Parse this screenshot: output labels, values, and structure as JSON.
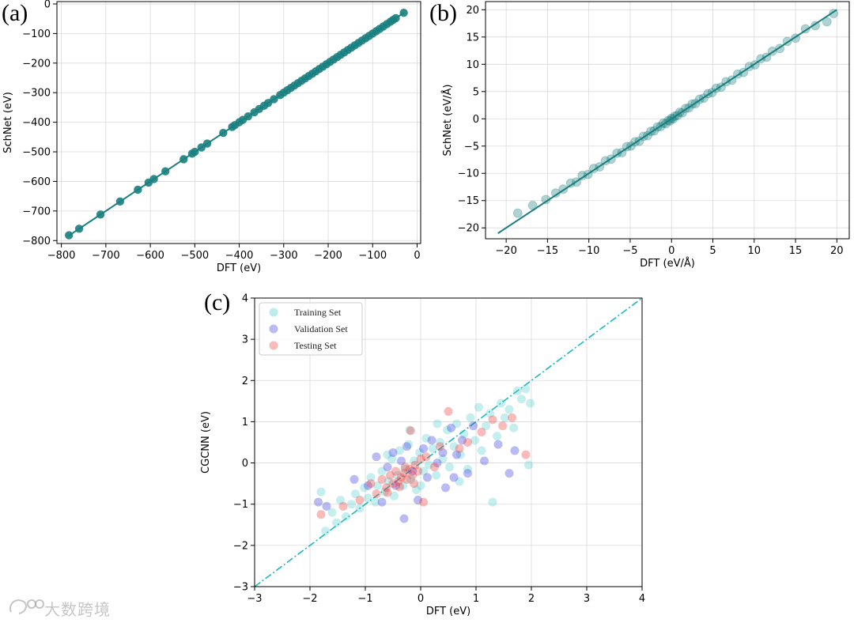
{
  "colors": {
    "teal": "#1a7f7f",
    "training": "#40c8c8",
    "validation": "#3a3adf",
    "testing": "#ef3a3a",
    "diag_c": "#1bb8c0"
  },
  "watermark": {
    "text": "大数跨境"
  },
  "chart_data": [
    {
      "id": "a",
      "type": "scatter",
      "panel_label": "(a)",
      "xlabel": "DFT (eV)",
      "ylabel": "SchNet (eV)",
      "xlim": [
        -810,
        8
      ],
      "ylim": [
        -810,
        8
      ],
      "grid": true,
      "xticks": [
        -800,
        -700,
        -600,
        -500,
        -400,
        -300,
        -200,
        -100,
        0
      ],
      "xtick_labels": [
        "−800",
        "−700",
        "−600",
        "−500",
        "−400",
        "−300",
        "−200",
        "−100",
        "0"
      ],
      "yticks": [
        -800,
        -700,
        -600,
        -500,
        -400,
        -300,
        -200,
        -100,
        0
      ],
      "ytick_labels": [
        "−800",
        "−700",
        "−600",
        "−500",
        "−400",
        "−300",
        "−200",
        "−100",
        "0"
      ],
      "diagonal": [
        [
          -783,
          -783
        ],
        [
          -30,
          -30
        ]
      ],
      "points": [
        [
          -783,
          -782
        ],
        [
          -760,
          -760
        ],
        [
          -712,
          -712
        ],
        [
          -668,
          -668
        ],
        [
          -628,
          -628
        ],
        [
          -604,
          -604
        ],
        [
          -592,
          -592
        ],
        [
          -566,
          -566
        ],
        [
          -525,
          -525
        ],
        [
          -506,
          -506
        ],
        [
          -500,
          -500
        ],
        [
          -485,
          -485
        ],
        [
          -472,
          -472
        ],
        [
          -436,
          -436
        ],
        [
          -416,
          -416
        ],
        [
          -410,
          -410
        ],
        [
          -400,
          -400
        ],
        [
          -392,
          -392
        ],
        [
          -380,
          -380
        ],
        [
          -366,
          -366
        ],
        [
          -355,
          -355
        ],
        [
          -344,
          -344
        ],
        [
          -335,
          -335
        ],
        [
          -322,
          -322
        ],
        [
          -308,
          -308
        ],
        [
          -300,
          -300
        ],
        [
          -292,
          -292
        ],
        [
          -284,
          -284
        ],
        [
          -276,
          -276
        ],
        [
          -268,
          -268
        ],
        [
          -260,
          -260
        ],
        [
          -252,
          -252
        ],
        [
          -244,
          -244
        ],
        [
          -236,
          -236
        ],
        [
          -228,
          -228
        ],
        [
          -220,
          -220
        ],
        [
          -212,
          -212
        ],
        [
          -204,
          -204
        ],
        [
          -196,
          -196
        ],
        [
          -188,
          -188
        ],
        [
          -180,
          -180
        ],
        [
          -172,
          -172
        ],
        [
          -164,
          -164
        ],
        [
          -156,
          -156
        ],
        [
          -148,
          -148
        ],
        [
          -140,
          -140
        ],
        [
          -132,
          -132
        ],
        [
          -124,
          -124
        ],
        [
          -116,
          -116
        ],
        [
          -108,
          -108
        ],
        [
          -100,
          -100
        ],
        [
          -92,
          -92
        ],
        [
          -84,
          -84
        ],
        [
          -76,
          -76
        ],
        [
          -68,
          -68
        ],
        [
          -60,
          -60
        ],
        [
          -54,
          -54
        ],
        [
          -48,
          -48
        ],
        [
          -30,
          -30
        ]
      ]
    },
    {
      "id": "b",
      "type": "scatter",
      "panel_label": "(b)",
      "xlabel": "DFT (eV/Å)",
      "ylabel": "SchNet (eV/Å)",
      "xlim": [
        -22.5,
        21.5
      ],
      "ylim": [
        -22,
        21.5
      ],
      "grid": true,
      "xticks": [
        -20,
        -15,
        -10,
        -5,
        0,
        5,
        10,
        15,
        20
      ],
      "xtick_labels": [
        "−20",
        "−15",
        "−10",
        "−5",
        "0",
        "5",
        "10",
        "15",
        "20"
      ],
      "yticks": [
        -20,
        -15,
        -10,
        -5,
        0,
        5,
        10,
        15,
        20
      ],
      "ytick_labels": [
        "−20",
        "−15",
        "−10",
        "−5",
        "0",
        "5",
        "10",
        "15",
        "20"
      ],
      "diagonal": [
        [
          -21,
          -21
        ],
        [
          20,
          20
        ]
      ],
      "points": [
        [
          -18.6,
          -17.3
        ],
        [
          -16.8,
          -15.9
        ],
        [
          -15.2,
          -14.8
        ],
        [
          -14.0,
          -13.6
        ],
        [
          -13.1,
          -12.9
        ],
        [
          -12.2,
          -11.8
        ],
        [
          -11.5,
          -11.6
        ],
        [
          -10.8,
          -10.4
        ],
        [
          -10.1,
          -10.2
        ],
        [
          -9.4,
          -9.1
        ],
        [
          -8.7,
          -8.8
        ],
        [
          -8.0,
          -7.7
        ],
        [
          -7.3,
          -7.4
        ],
        [
          -6.6,
          -6.3
        ],
        [
          -6.0,
          -6.2
        ],
        [
          -5.4,
          -5.1
        ],
        [
          -4.9,
          -5.0
        ],
        [
          -4.4,
          -4.2
        ],
        [
          -3.9,
          -4.1
        ],
        [
          -3.4,
          -3.2
        ],
        [
          -2.9,
          -3.1
        ],
        [
          -2.5,
          -2.3
        ],
        [
          -2.1,
          -2.2
        ],
        [
          -1.7,
          -1.5
        ],
        [
          -1.3,
          -1.4
        ],
        [
          -1.0,
          -0.8
        ],
        [
          -0.7,
          -0.9
        ],
        [
          -0.4,
          -0.3
        ],
        [
          -0.2,
          -0.4
        ],
        [
          0.0,
          0.1
        ],
        [
          0.2,
          0.0
        ],
        [
          0.4,
          0.5
        ],
        [
          0.7,
          0.6
        ],
        [
          1.0,
          1.2
        ],
        [
          1.3,
          1.1
        ],
        [
          1.7,
          1.9
        ],
        [
          2.1,
          2.0
        ],
        [
          2.5,
          2.7
        ],
        [
          2.9,
          2.8
        ],
        [
          3.4,
          3.6
        ],
        [
          3.9,
          3.8
        ],
        [
          4.4,
          4.6
        ],
        [
          4.9,
          4.8
        ],
        [
          5.4,
          5.6
        ],
        [
          6.0,
          5.8
        ],
        [
          6.6,
          6.8
        ],
        [
          7.3,
          7.1
        ],
        [
          8.0,
          8.2
        ],
        [
          8.7,
          8.5
        ],
        [
          9.4,
          9.6
        ],
        [
          10.1,
          9.9
        ],
        [
          10.8,
          11.0
        ],
        [
          11.5,
          11.3
        ],
        [
          12.2,
          12.4
        ],
        [
          13.1,
          12.9
        ],
        [
          14.0,
          14.2
        ],
        [
          15.0,
          14.8
        ],
        [
          16.2,
          16.5
        ],
        [
          17.4,
          17.1
        ],
        [
          18.8,
          17.8
        ],
        [
          19.6,
          19.3
        ]
      ]
    },
    {
      "id": "c",
      "type": "scatter",
      "panel_label": "(c)",
      "xlabel": "DFT (eV)",
      "ylabel": "CGCNN (eV)",
      "xlim": [
        -3,
        4
      ],
      "ylim": [
        -3,
        4
      ],
      "grid": true,
      "xticks": [
        -3,
        -2,
        -1,
        0,
        1,
        2,
        3,
        4
      ],
      "xtick_labels": [
        "−3",
        "−2",
        "−1",
        "0",
        "1",
        "2",
        "3",
        "4"
      ],
      "yticks": [
        -3,
        -2,
        -1,
        0,
        1,
        2,
        3,
        4
      ],
      "ytick_labels": [
        "−3",
        "−2",
        "−1",
        "0",
        "1",
        "2",
        "3",
        "4"
      ],
      "diagonal": [
        [
          -3,
          -3
        ],
        [
          4,
          4
        ]
      ],
      "legend": {
        "position": "top-left",
        "entries": [
          "Training Set",
          "Validation Set",
          "Testing Set"
        ]
      },
      "series": [
        {
          "name": "Training Set",
          "points": [
            [
              -1.8,
              -0.7
            ],
            [
              -1.72,
              -1.65
            ],
            [
              -1.6,
              -1.2
            ],
            [
              -1.52,
              -1.45
            ],
            [
              -1.45,
              -0.9
            ],
            [
              -1.35,
              -1.3
            ],
            [
              -1.25,
              -1.0
            ],
            [
              -1.18,
              -0.75
            ],
            [
              -1.1,
              -1.1
            ],
            [
              -1.02,
              -0.6
            ],
            [
              -0.95,
              -0.85
            ],
            [
              -0.9,
              -0.35
            ],
            [
              -0.82,
              -0.95
            ],
            [
              -0.78,
              -0.55
            ],
            [
              -0.7,
              -0.2
            ],
            [
              -0.65,
              -0.7
            ],
            [
              -0.58,
              -0.45
            ],
            [
              -0.52,
              0.1
            ],
            [
              -0.48,
              -0.8
            ],
            [
              -0.42,
              -0.3
            ],
            [
              -0.38,
              0.3
            ],
            [
              -0.32,
              -0.55
            ],
            [
              -0.28,
              -0.15
            ],
            [
              -0.22,
              0.45
            ],
            [
              -0.18,
              -0.4
            ],
            [
              -0.12,
              0.05
            ],
            [
              -0.08,
              -0.65
            ],
            [
              -0.02,
              0.25
            ],
            [
              0.05,
              -0.2
            ],
            [
              0.1,
              0.6
            ],
            [
              0.15,
              -0.05
            ],
            [
              0.22,
              0.35
            ],
            [
              0.28,
              -0.3
            ],
            [
              0.35,
              0.5
            ],
            [
              0.4,
              0.1
            ],
            [
              0.48,
              0.8
            ],
            [
              0.52,
              -0.1
            ],
            [
              0.6,
              0.4
            ],
            [
              0.65,
              0.95
            ],
            [
              0.72,
              0.2
            ],
            [
              0.78,
              0.7
            ],
            [
              0.85,
              -0.15
            ],
            [
              0.9,
              1.1
            ],
            [
              0.98,
              0.55
            ],
            [
              1.05,
              1.35
            ],
            [
              1.1,
              0.3
            ],
            [
              1.18,
              0.9
            ],
            [
              1.25,
              1.2
            ],
            [
              1.3,
              -0.95
            ],
            [
              1.38,
              0.65
            ],
            [
              1.45,
              1.45
            ],
            [
              1.52,
              1.1
            ],
            [
              1.6,
              1.3
            ],
            [
              1.68,
              0.85
            ],
            [
              1.75,
              1.75
            ],
            [
              1.82,
              1.55
            ],
            [
              1.9,
              1.8
            ],
            [
              1.95,
              -0.05
            ],
            [
              1.98,
              1.45
            ],
            [
              -0.2,
              0.8
            ],
            [
              0.0,
              -0.55
            ],
            [
              0.3,
              0.95
            ],
            [
              -0.6,
              0.2
            ],
            [
              0.7,
              -0.45
            ]
          ]
        },
        {
          "name": "Validation Set",
          "points": [
            [
              -1.85,
              -0.95
            ],
            [
              -1.7,
              -1.05
            ],
            [
              -1.2,
              -0.4
            ],
            [
              -0.95,
              -0.55
            ],
            [
              -0.8,
              0.15
            ],
            [
              -0.7,
              -0.95
            ],
            [
              -0.6,
              -0.1
            ],
            [
              -0.5,
              0.25
            ],
            [
              -0.45,
              -0.55
            ],
            [
              -0.35,
              0.05
            ],
            [
              -0.3,
              -1.35
            ],
            [
              -0.25,
              0.4
            ],
            [
              -0.15,
              -0.2
            ],
            [
              -0.05,
              -0.9
            ],
            [
              0.05,
              0.35
            ],
            [
              0.12,
              -0.35
            ],
            [
              0.2,
              0.55
            ],
            [
              0.3,
              0.0
            ],
            [
              0.4,
              0.25
            ],
            [
              0.45,
              -0.6
            ],
            [
              0.55,
              0.85
            ],
            [
              0.6,
              -0.35
            ],
            [
              0.65,
              0.2
            ],
            [
              0.75,
              0.55
            ],
            [
              0.85,
              -0.25
            ],
            [
              0.95,
              0.9
            ],
            [
              1.15,
              0.05
            ],
            [
              1.4,
              0.45
            ],
            [
              1.6,
              -0.25
            ],
            [
              1.7,
              0.3
            ]
          ]
        },
        {
          "name": "Testing Set",
          "points": [
            [
              -1.8,
              -1.25
            ],
            [
              -1.4,
              -1.05
            ],
            [
              -1.1,
              -0.9
            ],
            [
              -0.9,
              -0.5
            ],
            [
              -0.8,
              -0.75
            ],
            [
              -0.7,
              -0.4
            ],
            [
              -0.62,
              -0.6
            ],
            [
              -0.55,
              -0.3
            ],
            [
              -0.5,
              -0.5
            ],
            [
              -0.45,
              -0.2
            ],
            [
              -0.4,
              -0.45
            ],
            [
              -0.35,
              -0.35
            ],
            [
              -0.3,
              -0.25
            ],
            [
              -0.25,
              -0.4
            ],
            [
              -0.2,
              -0.15
            ],
            [
              -0.15,
              -0.3
            ],
            [
              -0.1,
              -0.05
            ],
            [
              -0.05,
              -0.2
            ],
            [
              0.0,
              0.1
            ],
            [
              0.05,
              -0.95
            ],
            [
              0.1,
              0.15
            ],
            [
              -0.18,
              0.78
            ],
            [
              0.25,
              -0.1
            ],
            [
              0.35,
              0.4
            ],
            [
              0.5,
              1.25
            ],
            [
              0.7,
              0.35
            ],
            [
              0.85,
              0.5
            ],
            [
              1.1,
              0.75
            ],
            [
              1.3,
              1.05
            ],
            [
              1.48,
              0.9
            ],
            [
              1.65,
              1.1
            ],
            [
              1.9,
              0.2
            ],
            [
              -0.6,
              -0.72
            ],
            [
              -0.38,
              -0.58
            ],
            [
              -0.28,
              -0.1
            ],
            [
              -0.12,
              -0.5
            ]
          ]
        }
      ]
    }
  ]
}
